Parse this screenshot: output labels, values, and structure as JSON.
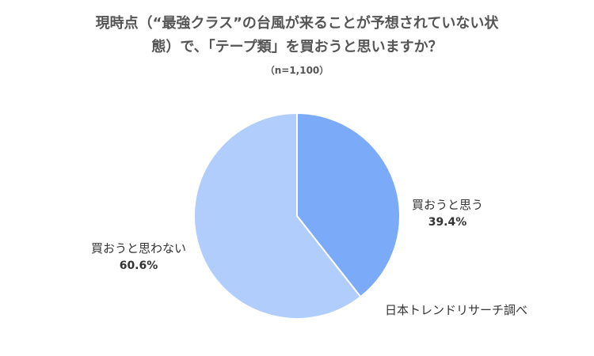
{
  "chart_data": {
    "type": "pie",
    "title_line1": "現時点（“最強クラス”の台風が来ることが予想されていない状",
    "title_line2": "態）で、「テープ類」を買おうと思いますか？",
    "subtitle": "（n=1,100）",
    "slices": [
      {
        "label": "買おうと思う",
        "value": 39.4,
        "value_text": "39.4%",
        "color": "#7aaaf8"
      },
      {
        "label": "買おうと思わない",
        "value": 60.6,
        "value_text": "60.6%",
        "color": "#b1cdfb"
      }
    ],
    "start": "12 o'clock",
    "direction": "clockwise",
    "source": "日本トレンドリサーチ調べ"
  }
}
